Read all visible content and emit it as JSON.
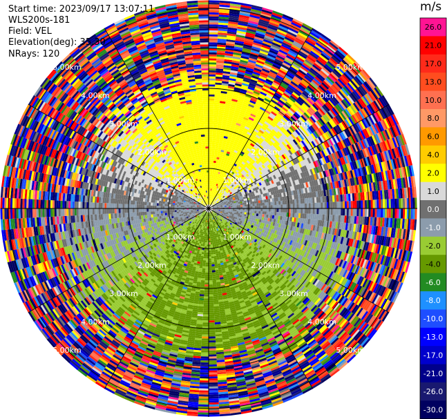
{
  "header": {
    "start_time": "Start time: 2023/09/17 13:07:11",
    "instrument": "WLS200s-181",
    "field": "Field: VEL",
    "elevation": "Elevation(deg): 35.30",
    "nrays": "NRays: 120"
  },
  "colorbar": {
    "unit": "m/s",
    "ticks": [
      "26.0",
      "21.0",
      "17.0",
      "13.0",
      "10.0",
      "8.0",
      "6.0",
      "4.0",
      "2.0",
      "1.0",
      "0.0",
      "-1.0",
      "-2.0",
      "-4.0",
      "-6.0",
      "-8.0",
      "-10.0",
      "-13.0",
      "-17.0",
      "-21.0",
      "-26.0",
      "-30.0"
    ],
    "colors": [
      "#ff1493",
      "#ff0000",
      "#ff2a1a",
      "#ff4d1f",
      "#ff7050",
      "#ff9966",
      "#ff9900",
      "#ffcc00",
      "#ffff00",
      "#d9d9d9",
      "#707070",
      "#8c9cac",
      "#99cc33",
      "#669900",
      "#228b22",
      "#1e90ff",
      "#1e4eff",
      "#0000ff",
      "#0000cd",
      "#00008b",
      "#191970",
      "#000060"
    ]
  },
  "chart_data": {
    "type": "ppi",
    "field": "VEL",
    "units": "m/s",
    "n_rays": 120,
    "range_rings_km": [
      1.0,
      2.0,
      3.0,
      4.0,
      5.0
    ],
    "range_ring_labels": [
      "1.00km",
      "2.00km",
      "3.00km",
      "4.00km",
      "5.00km"
    ],
    "max_range_km": 5.2,
    "color_scale": {
      "boundaries": [
        -30,
        -26,
        -21,
        -17,
        -13,
        -10,
        -8,
        -6,
        -4,
        -2,
        -1,
        0,
        1,
        2,
        4,
        6,
        8,
        10,
        13,
        17,
        21,
        26
      ],
      "colors": [
        "#000060",
        "#191970",
        "#00008b",
        "#0000cd",
        "#0000ff",
        "#1e4eff",
        "#1e90ff",
        "#228b22",
        "#669900",
        "#99cc33",
        "#8c9cac",
        "#707070",
        "#d9d9d9",
        "#ffff00",
        "#ffcc00",
        "#ff9900",
        "#ff9966",
        "#ff7050",
        "#ff4d1f",
        "#ff2a1a",
        "#ff0000",
        "#ff1493"
      ]
    },
    "pattern": {
      "north_velocity": 3.0,
      "south_velocity": -2.5,
      "east_west_velocity": 0.0,
      "coherent_range_north_km": 3.1,
      "coherent_range_south_km": 3.7,
      "noisy_beyond": true
    }
  }
}
